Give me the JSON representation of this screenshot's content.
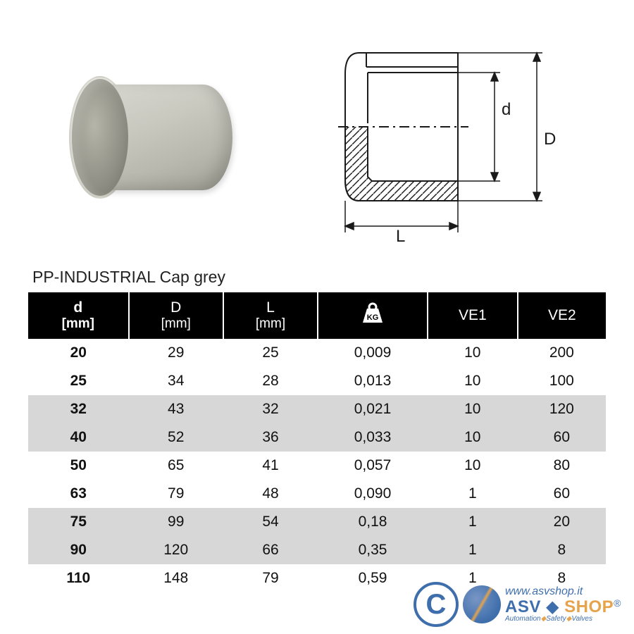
{
  "title": "PP-INDUSTRIAL Cap grey",
  "diagram": {
    "labels": {
      "d": "d",
      "D": "D",
      "L": "L"
    },
    "stroke": "#1a1a1a",
    "hatch": "#1a1a1a"
  },
  "table": {
    "columns": [
      {
        "key": "d",
        "header": "d",
        "unit": "[mm]",
        "bold_header": true
      },
      {
        "key": "D",
        "header": "D",
        "unit": "[mm]"
      },
      {
        "key": "L",
        "header": "L",
        "unit": "[mm]"
      },
      {
        "key": "kg",
        "header": "KG",
        "is_icon": true
      },
      {
        "key": "ve1",
        "header": "VE1"
      },
      {
        "key": "ve2",
        "header": "VE2"
      }
    ],
    "header_bg": "#000000",
    "header_fg": "#ffffff",
    "band_bg": "#d7d7d7",
    "rows": [
      {
        "d": "20",
        "D": "29",
        "L": "25",
        "kg": "0,009",
        "ve1": "10",
        "ve2": "200",
        "band": 0
      },
      {
        "d": "25",
        "D": "34",
        "L": "28",
        "kg": "0,013",
        "ve1": "10",
        "ve2": "100",
        "band": 0
      },
      {
        "d": "32",
        "D": "43",
        "L": "32",
        "kg": "0,021",
        "ve1": "10",
        "ve2": "120",
        "band": 1
      },
      {
        "d": "40",
        "D": "52",
        "L": "36",
        "kg": "0,033",
        "ve1": "10",
        "ve2": "60",
        "band": 1
      },
      {
        "d": "50",
        "D": "65",
        "L": "41",
        "kg": "0,057",
        "ve1": "10",
        "ve2": "80",
        "band": 0
      },
      {
        "d": "63",
        "D": "79",
        "L": "48",
        "kg": "0,090",
        "ve1": "1",
        "ve2": "60",
        "band": 0
      },
      {
        "d": "75",
        "D": "99",
        "L": "54",
        "kg": "0,18",
        "ve1": "1",
        "ve2": "20",
        "band": 1
      },
      {
        "d": "90",
        "D": "120",
        "L": "66",
        "kg": "0,35",
        "ve1": "1",
        "ve2": "8",
        "band": 1
      },
      {
        "d": "110",
        "D": "148",
        "L": "79",
        "kg": "0,59",
        "ve1": "1",
        "ve2": "8",
        "band": 0
      }
    ]
  },
  "watermark": {
    "copyright": "C",
    "url": "www.asvshop.it",
    "brand_asv": "ASV",
    "brand_shop": "SHOP",
    "reg": "®",
    "tagline_parts": [
      "Automation",
      "Safety",
      "Valves"
    ],
    "blue": "#2a5fa3",
    "orange": "#e39a3a"
  }
}
